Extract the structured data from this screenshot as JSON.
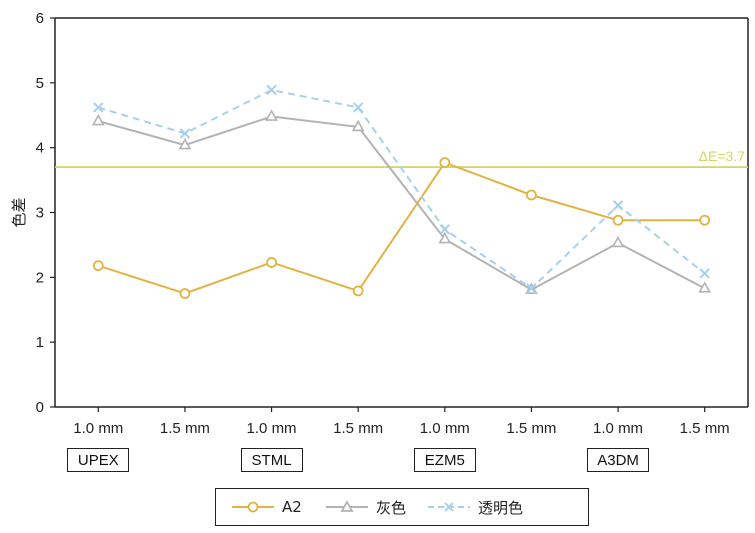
{
  "chart_data": {
    "type": "line",
    "ylabel": "色差",
    "ylim": [
      0,
      6
    ],
    "yticks": [
      "0",
      "1",
      "2",
      "3",
      "4",
      "5",
      "6"
    ],
    "categories": [
      "1.0 mm",
      "1.5 mm",
      "1.0 mm",
      "1.5 mm",
      "1.0 mm",
      "1.5 mm",
      "1.0 mm",
      "1.5 mm"
    ],
    "groups": [
      "UPEX",
      "STML",
      "EZM5",
      "A3DM"
    ],
    "threshold": {
      "value": 3.7,
      "label": "ΔE=3.7",
      "color": "#d4d660"
    },
    "series": [
      {
        "name": "A2",
        "values": [
          2.18,
          1.75,
          2.23,
          1.79,
          3.77,
          3.27,
          2.88,
          2.88
        ],
        "color": "#e0b443",
        "marker": "circle",
        "dash": "solid"
      },
      {
        "name": "灰色",
        "values": [
          4.41,
          4.04,
          4.48,
          4.32,
          2.59,
          1.81,
          2.53,
          1.83
        ],
        "color": "#b3b3b3",
        "marker": "triangle",
        "dash": "solid"
      },
      {
        "name": "透明色",
        "values": [
          4.62,
          4.22,
          4.89,
          4.62,
          2.74,
          1.83,
          3.11,
          2.06
        ],
        "color": "#a8d0ec",
        "marker": "x",
        "dash": "dashed"
      }
    ],
    "grid": false,
    "legend_position": "bottom"
  }
}
